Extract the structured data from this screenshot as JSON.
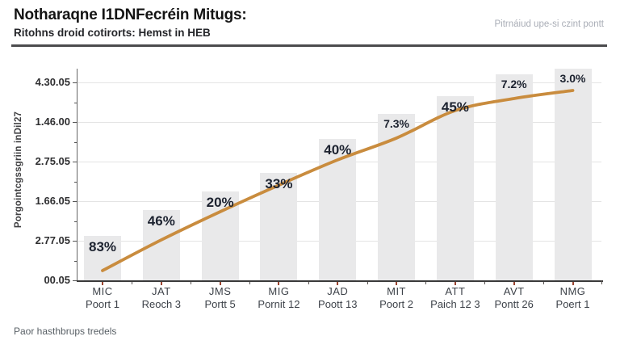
{
  "header": {
    "title": "Notharaqne I1DNFecréin Mitugs:",
    "subtitle": "Ritohns droid cotirorts: Hemst in HEB",
    "meta": "Pitrnáiud upe-si czint pontt"
  },
  "footer": {
    "note": "Paor hasthbrups tredels"
  },
  "chart_data": {
    "type": "bar",
    "title": "Notharaqne I1DNFecréin Mitugs:",
    "subtitle": "Ritohns droid cotirorts: Hemst in HEB",
    "legend": "none",
    "grid": "horizontal",
    "categories": [
      "MIC",
      "JAT",
      "JMS",
      "MIG",
      "JAD",
      "MIT",
      "ATT",
      "AVT",
      "NMG"
    ],
    "category_sublabels": [
      "Poort 1",
      "Reoch 3",
      "Portt 5",
      "Pornit 12",
      "Poott 13",
      "Poort 2",
      "Paich 12 3",
      "Pontt 26",
      "Poert 1"
    ],
    "bar_value_labels": [
      "83%",
      "46%",
      "20%",
      "33%",
      "40%",
      "7.3%",
      "45%",
      "7.2%",
      "3.0%"
    ],
    "bar_heights_frac": [
      0.21,
      0.333,
      0.421,
      0.508,
      0.668,
      0.786,
      0.87,
      0.973,
      1.0
    ],
    "line_series": {
      "name": "trend",
      "values_frac": [
        0.046,
        0.191,
        0.324,
        0.45,
        0.569,
        0.672,
        0.802,
        0.859,
        0.897
      ]
    },
    "y_axis": {
      "title": "Porgointcgssgriin inDil27",
      "tick_labels_top_to_bottom": [
        "4.30.05",
        "1.46.00",
        "2.75.05",
        "1.66.05",
        "2.77.05",
        "00.05"
      ]
    },
    "colors": {
      "bar": "#e9e9ea",
      "line": "#c98c3e",
      "grid": "#e4e4e4",
      "axis": "#3a3a3a",
      "x_tick": "#9a4430",
      "bar_label": "#1d2330"
    }
  }
}
